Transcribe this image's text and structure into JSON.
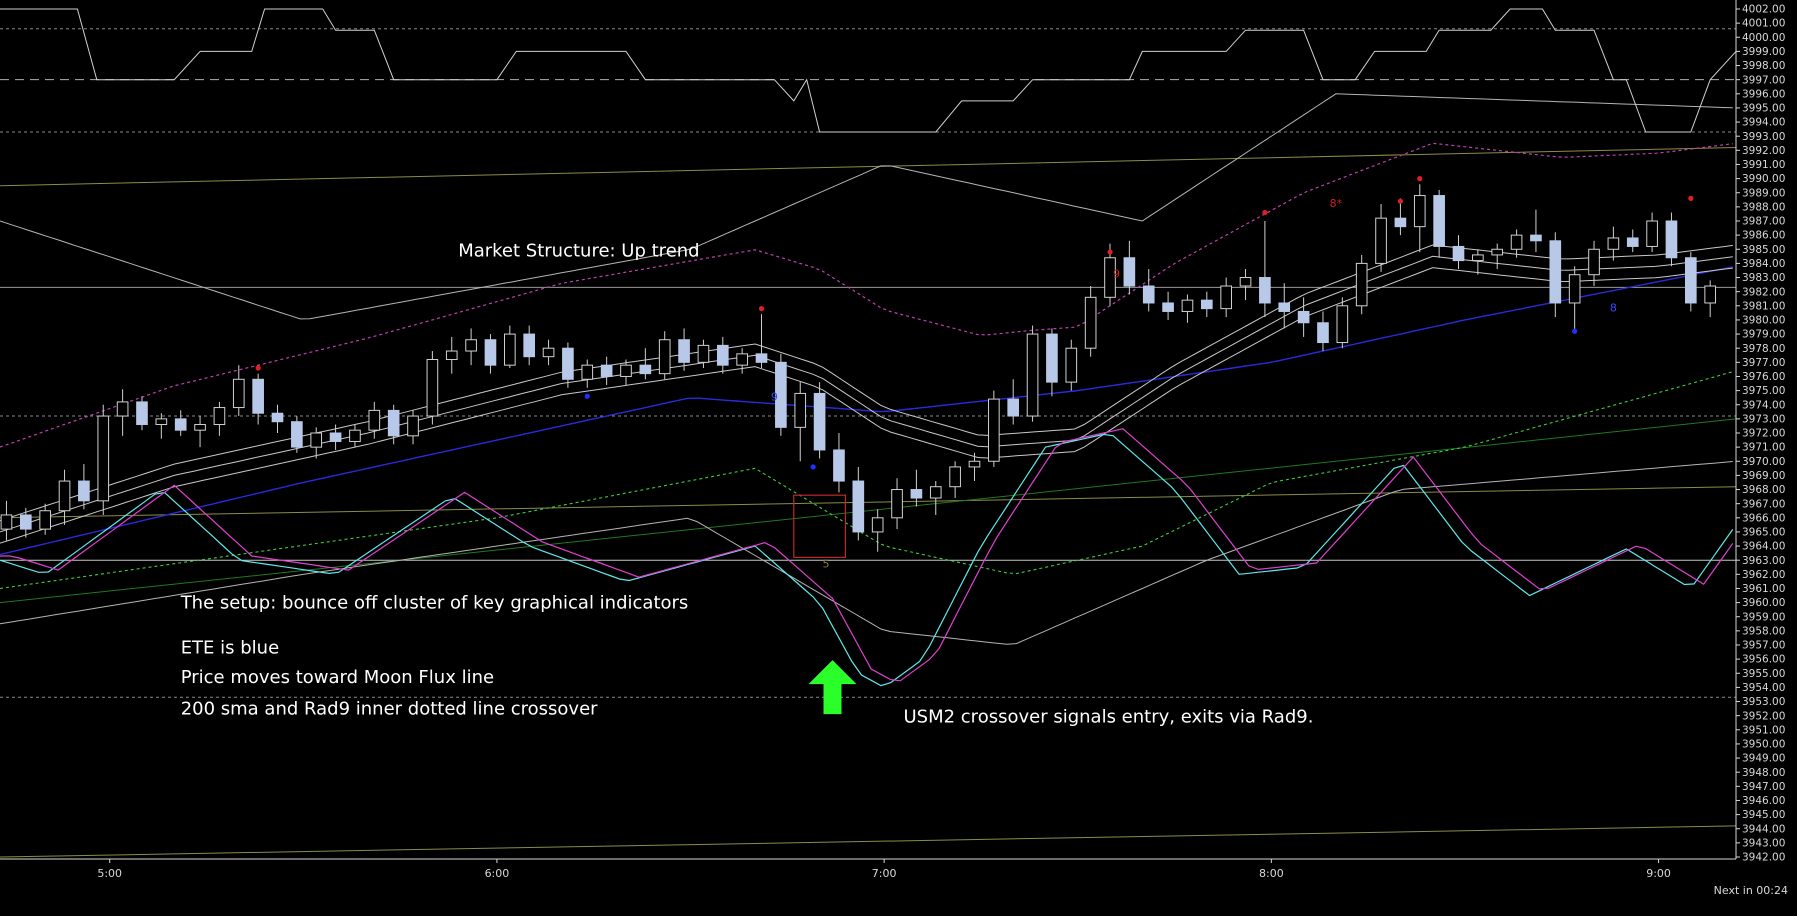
{
  "chart_data": {
    "type": "candlestick",
    "instrument_timeframe": "intraday",
    "y_axis": {
      "min": 3942.0,
      "max": 4002.0,
      "step": 1.0,
      "tick_labels": [
        "4002.00",
        "4001.00",
        "4000.00",
        "3999.00",
        "3998.00",
        "3997.00",
        "3996.00",
        "3995.00",
        "3994.00",
        "3993.00",
        "3992.00",
        "3991.00",
        "3990.00",
        "3989.00",
        "3988.00",
        "3987.00",
        "3986.00",
        "3985.00",
        "3984.00",
        "3983.00",
        "3982.00",
        "3981.00",
        "3980.00",
        "3979.00",
        "3978.00",
        "3977.00",
        "3976.00",
        "3975.00",
        "3974.00",
        "3973.00",
        "3972.00",
        "3971.00",
        "3970.00",
        "3969.00",
        "3968.00",
        "3967.00",
        "3966.00",
        "3965.00",
        "3964.00",
        "3963.00",
        "3962.00",
        "3961.00",
        "3960.00",
        "3959.00",
        "3958.00",
        "3957.00",
        "3956.00",
        "3955.00",
        "3954.00",
        "3953.00",
        "3952.00",
        "3951.00",
        "3950.00",
        "3949.00",
        "3948.00",
        "3947.00",
        "3946.00",
        "3945.00",
        "3944.00",
        "3943.00",
        "3942.00"
      ]
    },
    "x_axis": {
      "start": "4:43",
      "end": "9:12",
      "tick_labels": [
        "5:00",
        "6:00",
        "7:00",
        "8:00",
        "9:00"
      ]
    },
    "horizontal_levels": [
      {
        "value": 4000.6,
        "style": "dotted",
        "color": "#8a8a8a"
      },
      {
        "value": 3997.0,
        "style": "dashed",
        "color": "#b0b0b0"
      },
      {
        "value": 3993.3,
        "style": "dotted",
        "color": "#8a8a8a"
      },
      {
        "value": 3982.3,
        "style": "solid",
        "color": "#9a9a9a"
      },
      {
        "value": 3973.2,
        "style": "dotted",
        "color": "#8a8a8a"
      },
      {
        "value": 3963.0,
        "style": "solid",
        "color": "#c8c8c8"
      },
      {
        "value": 3953.3,
        "style": "dotted",
        "color": "#8a8a8a"
      }
    ],
    "candles": [
      {
        "t": "4:44",
        "o": 3965.2,
        "h": 3967.2,
        "l": 3964.4,
        "c": 3966.2
      },
      {
        "t": "4:47",
        "o": 3966.2,
        "h": 3966.7,
        "l": 3964.6,
        "c": 3965.2
      },
      {
        "t": "4:50",
        "o": 3965.2,
        "h": 3967.0,
        "l": 3964.8,
        "c": 3966.5
      },
      {
        "t": "4:53",
        "o": 3966.5,
        "h": 3969.4,
        "l": 3965.5,
        "c": 3968.6
      },
      {
        "t": "4:56",
        "o": 3968.6,
        "h": 3969.8,
        "l": 3966.6,
        "c": 3967.2
      },
      {
        "t": "4:59",
        "o": 3967.2,
        "h": 3974.0,
        "l": 3966.2,
        "c": 3973.2
      },
      {
        "t": "5:02",
        "o": 3973.2,
        "h": 3975.1,
        "l": 3971.8,
        "c": 3974.2
      },
      {
        "t": "5:05",
        "o": 3974.2,
        "h": 3974.6,
        "l": 3972.2,
        "c": 3972.6
      },
      {
        "t": "5:08",
        "o": 3972.6,
        "h": 3973.4,
        "l": 3971.6,
        "c": 3973.0
      },
      {
        "t": "5:11",
        "o": 3973.0,
        "h": 3973.6,
        "l": 3971.8,
        "c": 3972.2
      },
      {
        "t": "5:14",
        "o": 3972.2,
        "h": 3973.2,
        "l": 3971.0,
        "c": 3972.6
      },
      {
        "t": "5:17",
        "o": 3972.6,
        "h": 3974.2,
        "l": 3971.8,
        "c": 3973.8
      },
      {
        "t": "5:20",
        "o": 3973.8,
        "h": 3976.8,
        "l": 3973.2,
        "c": 3975.8
      },
      {
        "t": "5:23",
        "o": 3975.8,
        "h": 3976.2,
        "l": 3972.6,
        "c": 3973.4
      },
      {
        "t": "5:26",
        "o": 3973.4,
        "h": 3974.0,
        "l": 3972.0,
        "c": 3972.8
      },
      {
        "t": "5:29",
        "o": 3972.8,
        "h": 3973.2,
        "l": 3970.6,
        "c": 3971.0
      },
      {
        "t": "5:32",
        "o": 3971.0,
        "h": 3972.4,
        "l": 3970.2,
        "c": 3972.0
      },
      {
        "t": "5:35",
        "o": 3972.0,
        "h": 3972.6,
        "l": 3970.8,
        "c": 3971.4
      },
      {
        "t": "5:38",
        "o": 3971.4,
        "h": 3972.6,
        "l": 3971.0,
        "c": 3972.2
      },
      {
        "t": "5:41",
        "o": 3972.2,
        "h": 3974.2,
        "l": 3971.6,
        "c": 3973.6
      },
      {
        "t": "5:44",
        "o": 3973.6,
        "h": 3974.0,
        "l": 3971.2,
        "c": 3971.8
      },
      {
        "t": "5:47",
        "o": 3971.8,
        "h": 3973.6,
        "l": 3971.2,
        "c": 3973.2
      },
      {
        "t": "5:50",
        "o": 3973.2,
        "h": 3977.8,
        "l": 3972.6,
        "c": 3977.2
      },
      {
        "t": "5:53",
        "o": 3977.2,
        "h": 3978.8,
        "l": 3976.2,
        "c": 3977.8
      },
      {
        "t": "5:56",
        "o": 3977.8,
        "h": 3979.4,
        "l": 3976.8,
        "c": 3978.6
      },
      {
        "t": "5:59",
        "o": 3978.6,
        "h": 3979.0,
        "l": 3976.2,
        "c": 3976.8
      },
      {
        "t": "6:02",
        "o": 3976.8,
        "h": 3979.6,
        "l": 3976.6,
        "c": 3979.0
      },
      {
        "t": "6:05",
        "o": 3979.0,
        "h": 3979.6,
        "l": 3976.8,
        "c": 3977.4
      },
      {
        "t": "6:08",
        "o": 3977.4,
        "h": 3978.6,
        "l": 3976.8,
        "c": 3978.0
      },
      {
        "t": "6:11",
        "o": 3978.0,
        "h": 3978.4,
        "l": 3975.2,
        "c": 3975.8
      },
      {
        "t": "6:14",
        "o": 3975.8,
        "h": 3977.2,
        "l": 3975.2,
        "c": 3976.8
      },
      {
        "t": "6:17",
        "o": 3976.8,
        "h": 3977.4,
        "l": 3975.4,
        "c": 3976.0
      },
      {
        "t": "6:20",
        "o": 3976.0,
        "h": 3977.2,
        "l": 3975.4,
        "c": 3976.8
      },
      {
        "t": "6:23",
        "o": 3976.8,
        "h": 3978.0,
        "l": 3975.8,
        "c": 3976.2
      },
      {
        "t": "6:26",
        "o": 3976.2,
        "h": 3979.2,
        "l": 3975.8,
        "c": 3978.6
      },
      {
        "t": "6:29",
        "o": 3978.6,
        "h": 3979.4,
        "l": 3976.4,
        "c": 3977.0
      },
      {
        "t": "6:32",
        "o": 3977.0,
        "h": 3978.6,
        "l": 3976.6,
        "c": 3978.2
      },
      {
        "t": "6:35",
        "o": 3978.2,
        "h": 3978.8,
        "l": 3976.2,
        "c": 3976.8
      },
      {
        "t": "6:38",
        "o": 3976.8,
        "h": 3978.0,
        "l": 3976.2,
        "c": 3977.6
      },
      {
        "t": "6:41",
        "o": 3977.6,
        "h": 3980.4,
        "l": 3976.6,
        "c": 3977.0
      },
      {
        "t": "6:44",
        "o": 3977.0,
        "h": 3977.6,
        "l": 3971.8,
        "c": 3972.4
      },
      {
        "t": "6:47",
        "o": 3972.4,
        "h": 3975.6,
        "l": 3970.0,
        "c": 3974.8
      },
      {
        "t": "6:50",
        "o": 3974.8,
        "h": 3975.6,
        "l": 3970.2,
        "c": 3970.8
      },
      {
        "t": "6:53",
        "o": 3970.8,
        "h": 3972.0,
        "l": 3967.8,
        "c": 3968.6
      },
      {
        "t": "6:56",
        "o": 3968.6,
        "h": 3969.6,
        "l": 3964.4,
        "c": 3965.0
      },
      {
        "t": "6:59",
        "o": 3965.0,
        "h": 3966.6,
        "l": 3963.6,
        "c": 3966.0
      },
      {
        "t": "7:02",
        "o": 3966.0,
        "h": 3968.8,
        "l": 3965.2,
        "c": 3968.0
      },
      {
        "t": "7:05",
        "o": 3968.0,
        "h": 3969.4,
        "l": 3966.8,
        "c": 3967.4
      },
      {
        "t": "7:08",
        "o": 3967.4,
        "h": 3968.6,
        "l": 3966.2,
        "c": 3968.2
      },
      {
        "t": "7:11",
        "o": 3968.2,
        "h": 3970.0,
        "l": 3967.4,
        "c": 3969.6
      },
      {
        "t": "7:14",
        "o": 3969.6,
        "h": 3970.6,
        "l": 3968.6,
        "c": 3970.0
      },
      {
        "t": "7:17",
        "o": 3970.0,
        "h": 3975.0,
        "l": 3969.6,
        "c": 3974.4
      },
      {
        "t": "7:20",
        "o": 3974.4,
        "h": 3975.8,
        "l": 3972.6,
        "c": 3973.2
      },
      {
        "t": "7:23",
        "o": 3973.2,
        "h": 3979.6,
        "l": 3972.8,
        "c": 3979.0
      },
      {
        "t": "7:26",
        "o": 3979.0,
        "h": 3979.4,
        "l": 3974.6,
        "c": 3975.6
      },
      {
        "t": "7:29",
        "o": 3975.6,
        "h": 3978.6,
        "l": 3975.0,
        "c": 3978.0
      },
      {
        "t": "7:32",
        "o": 3978.0,
        "h": 3982.4,
        "l": 3977.4,
        "c": 3981.6
      },
      {
        "t": "7:35",
        "o": 3981.6,
        "h": 3985.4,
        "l": 3981.0,
        "c": 3984.4
      },
      {
        "t": "7:38",
        "o": 3984.4,
        "h": 3985.6,
        "l": 3981.8,
        "c": 3982.4
      },
      {
        "t": "7:41",
        "o": 3982.4,
        "h": 3983.6,
        "l": 3980.6,
        "c": 3981.2
      },
      {
        "t": "7:44",
        "o": 3981.2,
        "h": 3982.0,
        "l": 3980.0,
        "c": 3980.6
      },
      {
        "t": "7:47",
        "o": 3980.6,
        "h": 3981.8,
        "l": 3979.8,
        "c": 3981.4
      },
      {
        "t": "7:50",
        "o": 3981.4,
        "h": 3982.0,
        "l": 3980.2,
        "c": 3980.8
      },
      {
        "t": "7:53",
        "o": 3980.8,
        "h": 3983.0,
        "l": 3980.2,
        "c": 3982.4
      },
      {
        "t": "7:56",
        "o": 3982.4,
        "h": 3983.6,
        "l": 3981.4,
        "c": 3983.0
      },
      {
        "t": "7:59",
        "o": 3983.0,
        "h": 3987.0,
        "l": 3980.2,
        "c": 3981.2
      },
      {
        "t": "8:02",
        "o": 3981.2,
        "h": 3982.6,
        "l": 3979.4,
        "c": 3980.6
      },
      {
        "t": "8:05",
        "o": 3980.6,
        "h": 3981.6,
        "l": 3978.8,
        "c": 3979.8
      },
      {
        "t": "8:08",
        "o": 3979.8,
        "h": 3980.6,
        "l": 3977.8,
        "c": 3978.4
      },
      {
        "t": "8:11",
        "o": 3978.4,
        "h": 3981.6,
        "l": 3978.0,
        "c": 3981.0
      },
      {
        "t": "8:14",
        "o": 3981.0,
        "h": 3984.6,
        "l": 3980.4,
        "c": 3984.0
      },
      {
        "t": "8:17",
        "o": 3984.0,
        "h": 3988.2,
        "l": 3983.4,
        "c": 3987.2
      },
      {
        "t": "8:20",
        "o": 3987.2,
        "h": 3988.6,
        "l": 3986.0,
        "c": 3986.6
      },
      {
        "t": "8:23",
        "o": 3986.6,
        "h": 3989.6,
        "l": 3984.8,
        "c": 3988.8
      },
      {
        "t": "8:26",
        "o": 3988.8,
        "h": 3989.2,
        "l": 3984.4,
        "c": 3985.2
      },
      {
        "t": "8:29",
        "o": 3985.2,
        "h": 3986.0,
        "l": 3983.6,
        "c": 3984.2
      },
      {
        "t": "8:32",
        "o": 3984.2,
        "h": 3985.0,
        "l": 3983.2,
        "c": 3984.6
      },
      {
        "t": "8:35",
        "o": 3984.6,
        "h": 3985.4,
        "l": 3983.6,
        "c": 3985.0
      },
      {
        "t": "8:38",
        "o": 3985.0,
        "h": 3986.4,
        "l": 3984.4,
        "c": 3986.0
      },
      {
        "t": "8:41",
        "o": 3986.0,
        "h": 3987.8,
        "l": 3984.8,
        "c": 3985.6
      },
      {
        "t": "8:44",
        "o": 3985.6,
        "h": 3986.2,
        "l": 3980.2,
        "c": 3981.2
      },
      {
        "t": "8:47",
        "o": 3981.2,
        "h": 3983.8,
        "l": 3979.2,
        "c": 3983.2
      },
      {
        "t": "8:50",
        "o": 3983.2,
        "h": 3985.6,
        "l": 3982.4,
        "c": 3985.0
      },
      {
        "t": "8:53",
        "o": 3985.0,
        "h": 3986.6,
        "l": 3984.2,
        "c": 3985.8
      },
      {
        "t": "8:56",
        "o": 3985.8,
        "h": 3986.4,
        "l": 3984.8,
        "c": 3985.2
      },
      {
        "t": "8:59",
        "o": 3985.2,
        "h": 3987.6,
        "l": 3984.8,
        "c": 3987.0
      },
      {
        "t": "9:02",
        "o": 3987.0,
        "h": 3987.6,
        "l": 3983.8,
        "c": 3984.4
      },
      {
        "t": "9:05",
        "o": 3984.4,
        "h": 3984.8,
        "l": 3980.6,
        "c": 3981.2
      },
      {
        "t": "9:08",
        "o": 3981.2,
        "h": 3982.8,
        "l": 3980.2,
        "c": 3982.4
      }
    ],
    "annotations": [
      {
        "text": "Market Structure: Up trend",
        "t": "5:54",
        "y": 3984.5
      },
      {
        "text": "The setup:  bounce off cluster of key graphical indicators",
        "t": "5:11",
        "y": 3959.6
      },
      {
        "text": "ETE is blue",
        "t": "5:11",
        "y": 3956.4
      },
      {
        "text": "Price moves toward Moon Flux line",
        "t": "5:11",
        "y": 3954.3
      },
      {
        "text": "200 sma and Rad9 inner dotted line crossover",
        "t": "5:11",
        "y": 3952.1
      },
      {
        "text": "USM2 crossover signals entry, exits via Rad9.",
        "t": "7:03",
        "y": 3951.5
      }
    ],
    "signal_labels": [
      {
        "text": "9",
        "t": "6:43",
        "y": 3974.3,
        "color": "#3a4cff"
      },
      {
        "text": "5",
        "t": "6:51",
        "y": 3962.5,
        "color": "#8a7a4a"
      },
      {
        "text": "9",
        "t": "7:36",
        "y": 3983.0,
        "color": "#d02020"
      },
      {
        "text": "8*",
        "t": "8:10",
        "y": 3988.0,
        "color": "#d02020"
      },
      {
        "text": "8",
        "t": "8:53",
        "y": 3980.6,
        "color": "#3a4cff"
      }
    ],
    "signal_dots": [
      {
        "t": "5:23",
        "y": 3976.6,
        "color": "#e02020"
      },
      {
        "t": "6:41",
        "y": 3980.8,
        "color": "#e02020"
      },
      {
        "t": "6:14",
        "y": 3974.6,
        "color": "#2030ff"
      },
      {
        "t": "6:49",
        "y": 3969.6,
        "color": "#2030ff"
      },
      {
        "t": "7:35",
        "y": 3984.8,
        "color": "#e02020"
      },
      {
        "t": "7:59",
        "y": 3987.6,
        "color": "#e02020"
      },
      {
        "t": "8:20",
        "y": 3988.4,
        "color": "#e02020"
      },
      {
        "t": "8:23",
        "y": 3990.0,
        "color": "#e02020"
      },
      {
        "t": "8:47",
        "y": 3979.2,
        "color": "#2030ff"
      },
      {
        "t": "9:05",
        "y": 3988.6,
        "color": "#e02020"
      }
    ],
    "entry_marker": {
      "t": "6:52",
      "y": 3954.8,
      "shape": "up-arrow",
      "color": "#2aff2a"
    },
    "setup_box": {
      "t_start": "6:46",
      "t_end": "6:54",
      "y_top": 3967.6,
      "y_bottom": 3963.2,
      "color": "#c02828"
    },
    "footer_text": "Next in 00:24"
  }
}
